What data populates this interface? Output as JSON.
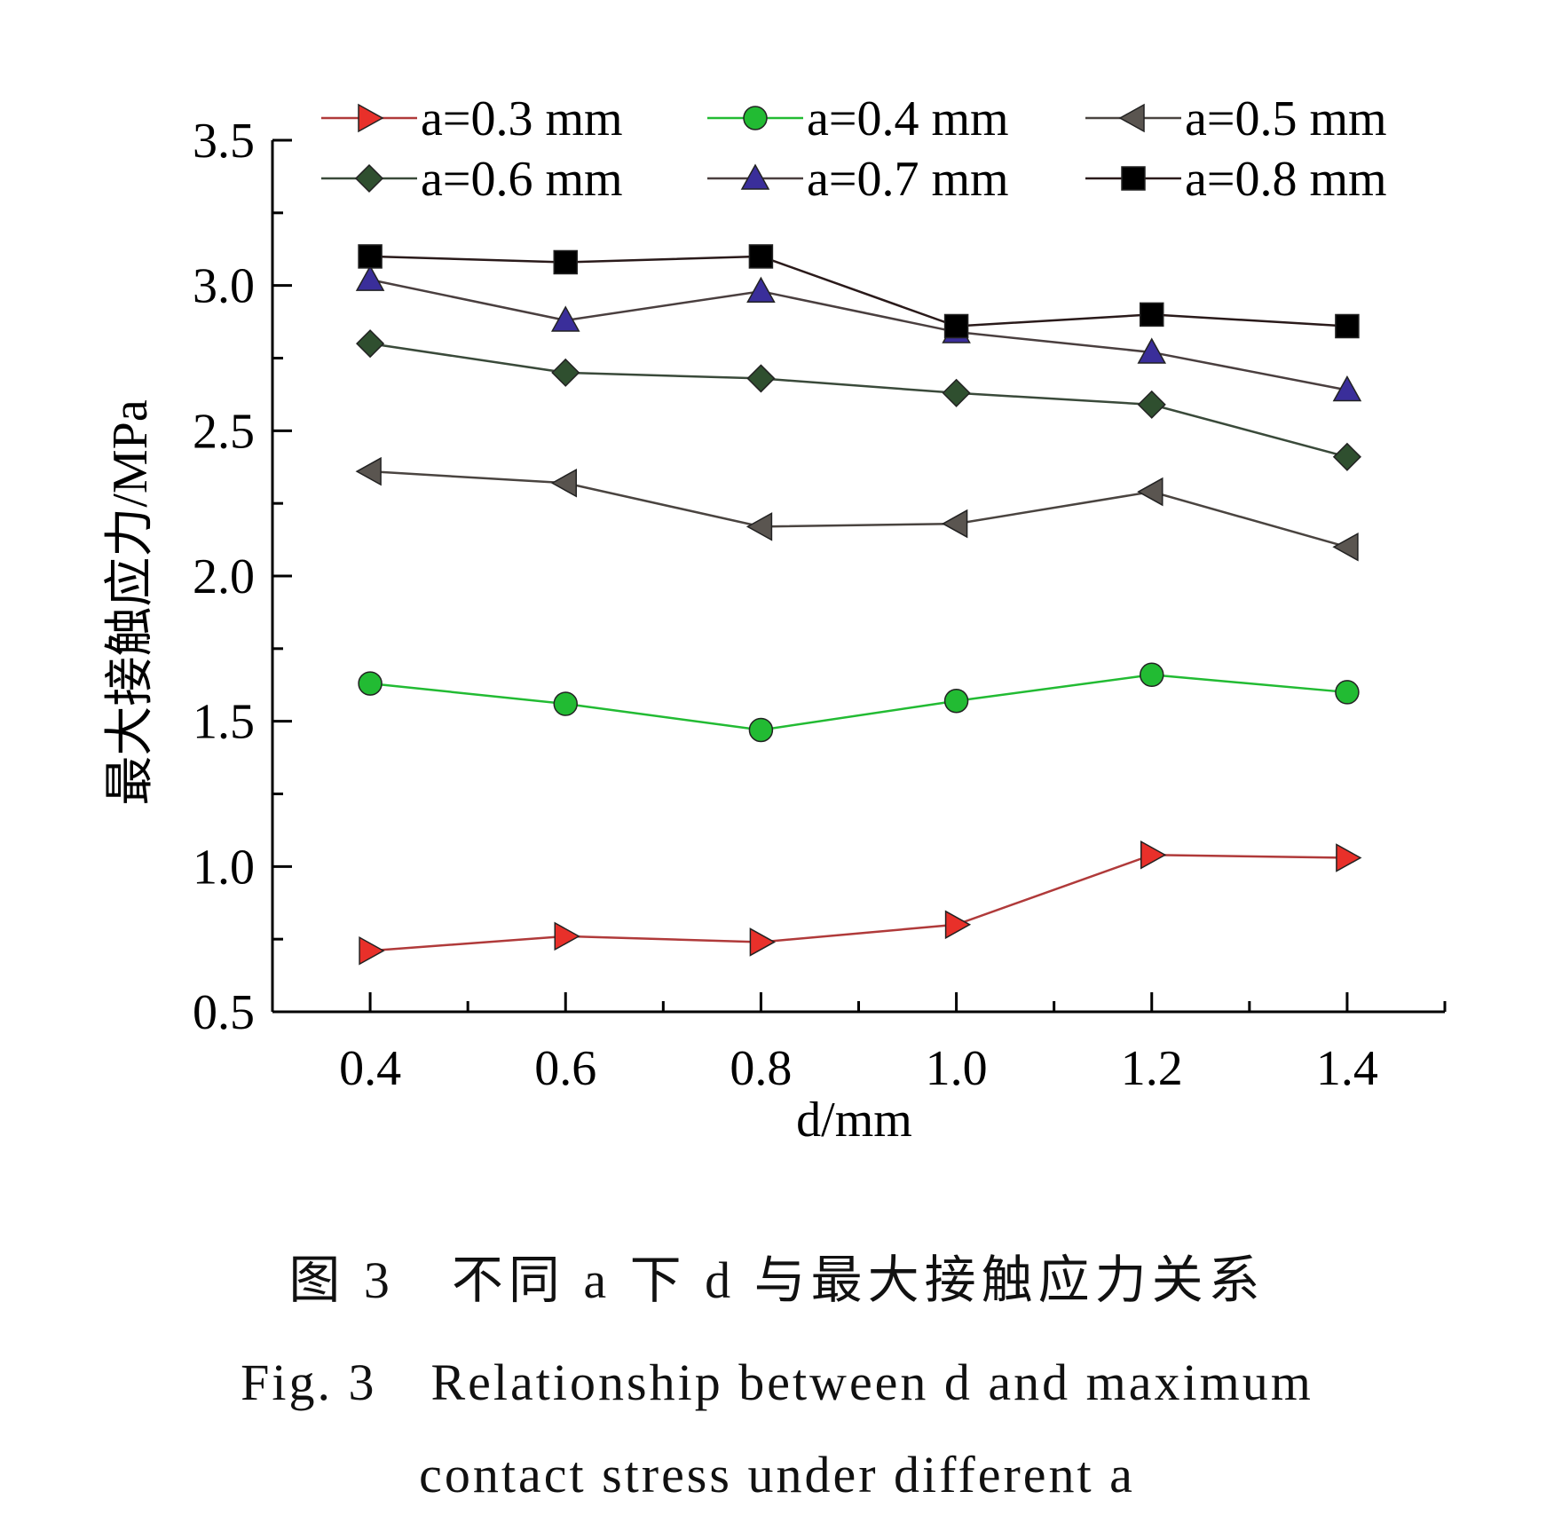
{
  "chart_data": {
    "type": "line",
    "xlabel": "d/mm",
    "ylabel": "最大接触应力/MPa",
    "x": [
      0.4,
      0.6,
      0.8,
      1.0,
      1.2,
      1.4
    ],
    "xlim": [
      0.3,
      1.5
    ],
    "ylim": [
      0.5,
      3.5
    ],
    "x_ticks": [
      "0.4",
      "0.6",
      "0.8",
      "1.0",
      "1.2",
      "1.4"
    ],
    "y_ticks": [
      "0.5",
      "1.0",
      "1.5",
      "2.0",
      "2.5",
      "3.0",
      "3.5"
    ],
    "grid": false,
    "legend_position": "top",
    "series": [
      {
        "name": "a=0.3 mm",
        "marker": "triangle-right",
        "color": "#e8302a",
        "line_color": "#b03a3a",
        "values": [
          0.71,
          0.76,
          0.74,
          0.8,
          1.04,
          1.03
        ]
      },
      {
        "name": "a=0.4 mm",
        "marker": "circle",
        "color": "#22bb33",
        "line_color": "#22bb33",
        "values": [
          1.63,
          1.56,
          1.47,
          1.57,
          1.66,
          1.6
        ]
      },
      {
        "name": "a=0.5 mm",
        "marker": "triangle-left",
        "color": "#5a5550",
        "line_color": "#4a4440",
        "values": [
          2.36,
          2.32,
          2.17,
          2.18,
          2.29,
          2.1
        ]
      },
      {
        "name": "a=0.6 mm",
        "marker": "diamond",
        "color": "#2f4f2f",
        "line_color": "#3a4a3a",
        "values": [
          2.8,
          2.7,
          2.68,
          2.63,
          2.59,
          2.41
        ]
      },
      {
        "name": "a=0.7 mm",
        "marker": "triangle-up",
        "color": "#3a2e9a",
        "line_color": "#4a3f3f",
        "values": [
          3.02,
          2.88,
          2.98,
          2.84,
          2.77,
          2.64
        ]
      },
      {
        "name": "a=0.8 mm",
        "marker": "square",
        "color": "#000000",
        "line_color": "#2a1a1a",
        "values": [
          3.1,
          3.08,
          3.1,
          2.86,
          2.9,
          2.86
        ]
      }
    ]
  },
  "caption": {
    "zh": "图 3　不同 a 下 d 与最大接触应力关系",
    "en_line1": "Fig. 3　Relationship between d and maximum",
    "en_line2": "contact stress under different a"
  }
}
